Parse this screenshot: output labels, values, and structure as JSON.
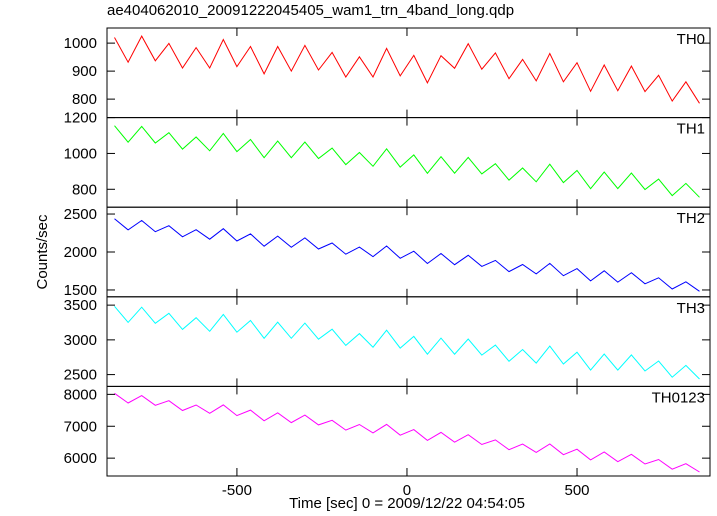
{
  "chart_data": {
    "type": "line",
    "title": "ae404062010_20091222045405_wam1_trn_4band_long.qdp",
    "xlabel": "Time [sec] 0 = 2009/12/22 04:54:05",
    "ylabel": "Counts/sec",
    "xlim": [
      -882,
      891
    ],
    "xticks": [
      -500,
      0,
      500
    ],
    "x": [
      -860,
      -820,
      -780,
      -740,
      -700,
      -660,
      -620,
      -580,
      -540,
      -500,
      -460,
      -420,
      -380,
      -340,
      -300,
      -260,
      -220,
      -180,
      -140,
      -100,
      -60,
      -20,
      20,
      60,
      100,
      140,
      180,
      220,
      260,
      300,
      340,
      380,
      420,
      460,
      500,
      540,
      580,
      620,
      660,
      700,
      740,
      780,
      820,
      860
    ],
    "panels": [
      {
        "name": "TH0",
        "color": "#ff0000",
        "ylim": [
          734,
          1054
        ],
        "yticks": [
          800,
          900,
          1000
        ],
        "values": [
          1020,
          932,
          1025,
          937,
          999,
          911,
          984,
          911,
          1013,
          916,
          988,
          890,
          988,
          900,
          992,
          904,
          967,
          879,
          951,
          879,
          981,
          883,
          956,
          858,
          955,
          910,
          998,
          907,
          965,
          873,
          942,
          865,
          963,
          862,
          930,
          828,
          922,
          830,
          918,
          827,
          885,
          793,
          862,
          785
        ]
      },
      {
        "name": "TH1",
        "color": "#00ff00",
        "ylim": [
          700,
          1200
        ],
        "yticks": [
          800,
          1000,
          1200
        ],
        "values": [
          1155,
          1063,
          1151,
          1058,
          1116,
          1024,
          1092,
          1015,
          1112,
          1010,
          1078,
          976,
          1069,
          976,
          1064,
          972,
          1030,
          938,
          1005,
          928,
          1026,
          924,
          992,
          889,
          982,
          890,
          978,
          886,
          943,
          851,
          919,
          842,
          940,
          837,
          905,
          803,
          896,
          804,
          891,
          799,
          857,
          765,
          833,
          755
        ]
      },
      {
        "name": "TH2",
        "color": "#0000ff",
        "ylim": [
          1410,
          2590
        ],
        "yticks": [
          1500,
          2000,
          2500
        ],
        "values": [
          2438,
          2291,
          2415,
          2268,
          2347,
          2200,
          2294,
          2169,
          2307,
          2145,
          2239,
          2077,
          2209,
          2062,
          2186,
          2039,
          2118,
          1971,
          2065,
          1940,
          2079,
          1917,
          2010,
          1848,
          1980,
          1833,
          1957,
          1810,
          1889,
          1742,
          1836,
          1711,
          1850,
          1688,
          1782,
          1620,
          1752,
          1604,
          1728,
          1581,
          1660,
          1513,
          1607,
          1482
        ]
      },
      {
        "name": "TH3",
        "color": "#00ffff",
        "ylim": [
          2330,
          3620
        ],
        "yticks": [
          2500,
          3000,
          3500
        ],
        "values": [
          3483,
          3251,
          3470,
          3238,
          3382,
          3150,
          3319,
          3124,
          3367,
          3110,
          3279,
          3022,
          3254,
          3022,
          3241,
          3009,
          3153,
          2921,
          3090,
          2895,
          3139,
          2882,
          3050,
          2793,
          3025,
          2793,
          3012,
          2780,
          2924,
          2692,
          2861,
          2666,
          2910,
          2653,
          2822,
          2565,
          2797,
          2564,
          2783,
          2551,
          2695,
          2463,
          2632,
          2437
        ]
      },
      {
        "name": "TH0123",
        "color": "#ff00ff",
        "ylim": [
          5440,
          8250
        ],
        "yticks": [
          6000,
          7000,
          8000
        ],
        "values": [
          8035,
          7729,
          7963,
          7657,
          7800,
          7494,
          7668,
          7407,
          7671,
          7335,
          7508,
          7172,
          7421,
          7115,
          7349,
          7043,
          7186,
          6880,
          7054,
          6793,
          7057,
          6721,
          6894,
          6558,
          6807,
          6501,
          6735,
          6429,
          6572,
          6266,
          6440,
          6179,
          6443,
          6107,
          6280,
          5944,
          6193,
          5887,
          6121,
          5815,
          5958,
          5652,
          5826,
          5565
        ]
      }
    ]
  }
}
